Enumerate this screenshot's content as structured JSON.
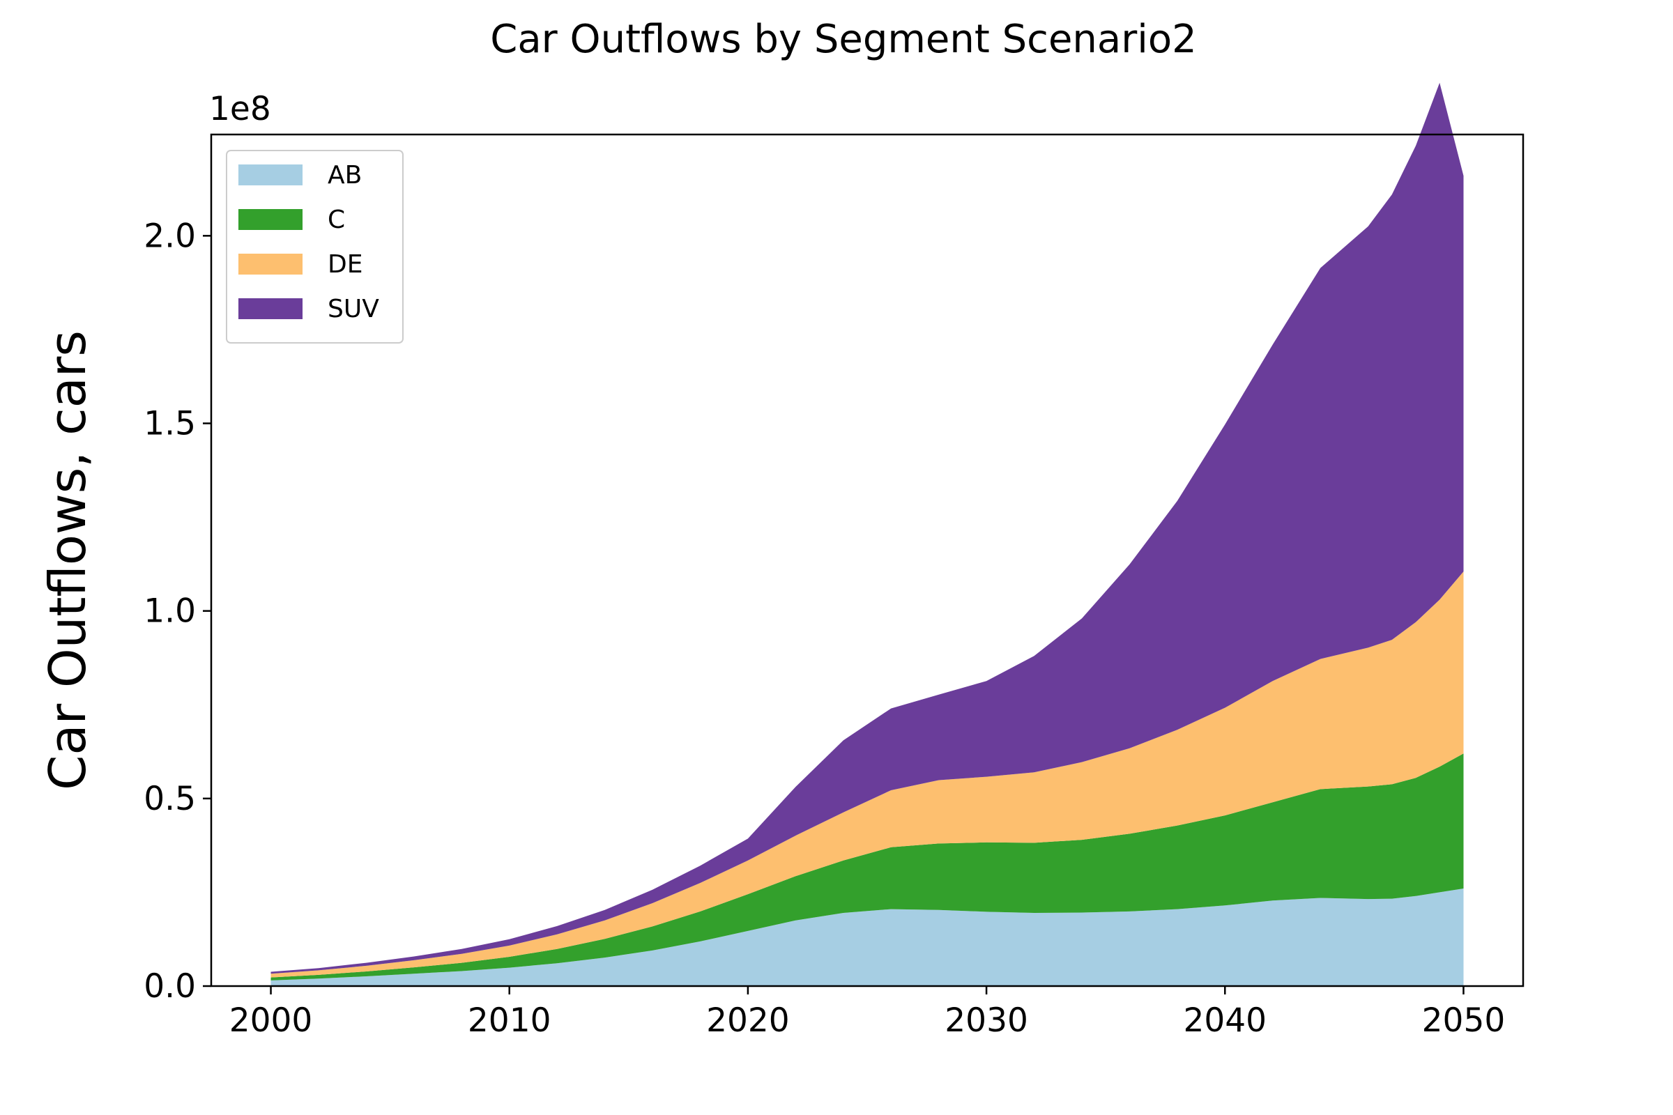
{
  "chart_data": {
    "type": "area",
    "stacked": true,
    "title": "Car Outflows by Segment Scenario2",
    "xlabel": "",
    "ylabel": "Car Outflows, cars",
    "offset_text": "1e8",
    "xlim": [
      1997.5,
      2052.5
    ],
    "ylim": [
      0,
      2.27
    ],
    "x_ticks": [
      2000,
      2010,
      2020,
      2030,
      2040,
      2050
    ],
    "x_tick_labels": [
      "2000",
      "2010",
      "2020",
      "2030",
      "2040",
      "2050"
    ],
    "y_ticks": [
      0.0,
      0.5,
      1.0,
      1.5,
      2.0
    ],
    "y_tick_labels": [
      "0.0",
      "0.5",
      "1.0",
      "1.5",
      "2.0"
    ],
    "legend_position": "upper-left",
    "grid": false,
    "x": [
      2000,
      2002,
      2004,
      2006,
      2008,
      2010,
      2012,
      2014,
      2016,
      2018,
      2020,
      2022,
      2024,
      2026,
      2028,
      2030,
      2032,
      2034,
      2036,
      2038,
      2040,
      2042,
      2044,
      2046,
      2047,
      2048,
      2049,
      2050
    ],
    "series": [
      {
        "name": "AB",
        "color": "#a6cee3",
        "values": [
          0.015,
          0.02,
          0.026,
          0.033,
          0.04,
          0.049,
          0.061,
          0.076,
          0.095,
          0.119,
          0.147,
          0.175,
          0.195,
          0.205,
          0.203,
          0.198,
          0.195,
          0.196,
          0.199,
          0.205,
          0.215,
          0.228,
          0.235,
          0.232,
          0.233,
          0.24,
          0.25,
          0.26
        ]
      },
      {
        "name": "C",
        "color": "#33a02c",
        "values": [
          0.008,
          0.01,
          0.013,
          0.017,
          0.022,
          0.029,
          0.038,
          0.05,
          0.064,
          0.08,
          0.098,
          0.118,
          0.14,
          0.165,
          0.177,
          0.185,
          0.187,
          0.194,
          0.207,
          0.223,
          0.24,
          0.262,
          0.29,
          0.3,
          0.305,
          0.315,
          0.335,
          0.36
        ]
      },
      {
        "name": "DE",
        "color": "#fdbf6f",
        "values": [
          0.01,
          0.012,
          0.015,
          0.019,
          0.024,
          0.03,
          0.039,
          0.049,
          0.062,
          0.076,
          0.09,
          0.108,
          0.128,
          0.152,
          0.169,
          0.175,
          0.188,
          0.207,
          0.228,
          0.255,
          0.287,
          0.323,
          0.347,
          0.37,
          0.385,
          0.415,
          0.445,
          0.485
        ]
      },
      {
        "name": "SUV",
        "color": "#6a3d9a",
        "values": [
          0.005,
          0.006,
          0.008,
          0.01,
          0.013,
          0.017,
          0.022,
          0.028,
          0.036,
          0.046,
          0.058,
          0.13,
          0.192,
          0.218,
          0.228,
          0.255,
          0.31,
          0.383,
          0.49,
          0.61,
          0.755,
          0.897,
          1.042,
          1.123,
          1.187,
          1.27,
          1.378,
          1.055
        ]
      }
    ]
  }
}
